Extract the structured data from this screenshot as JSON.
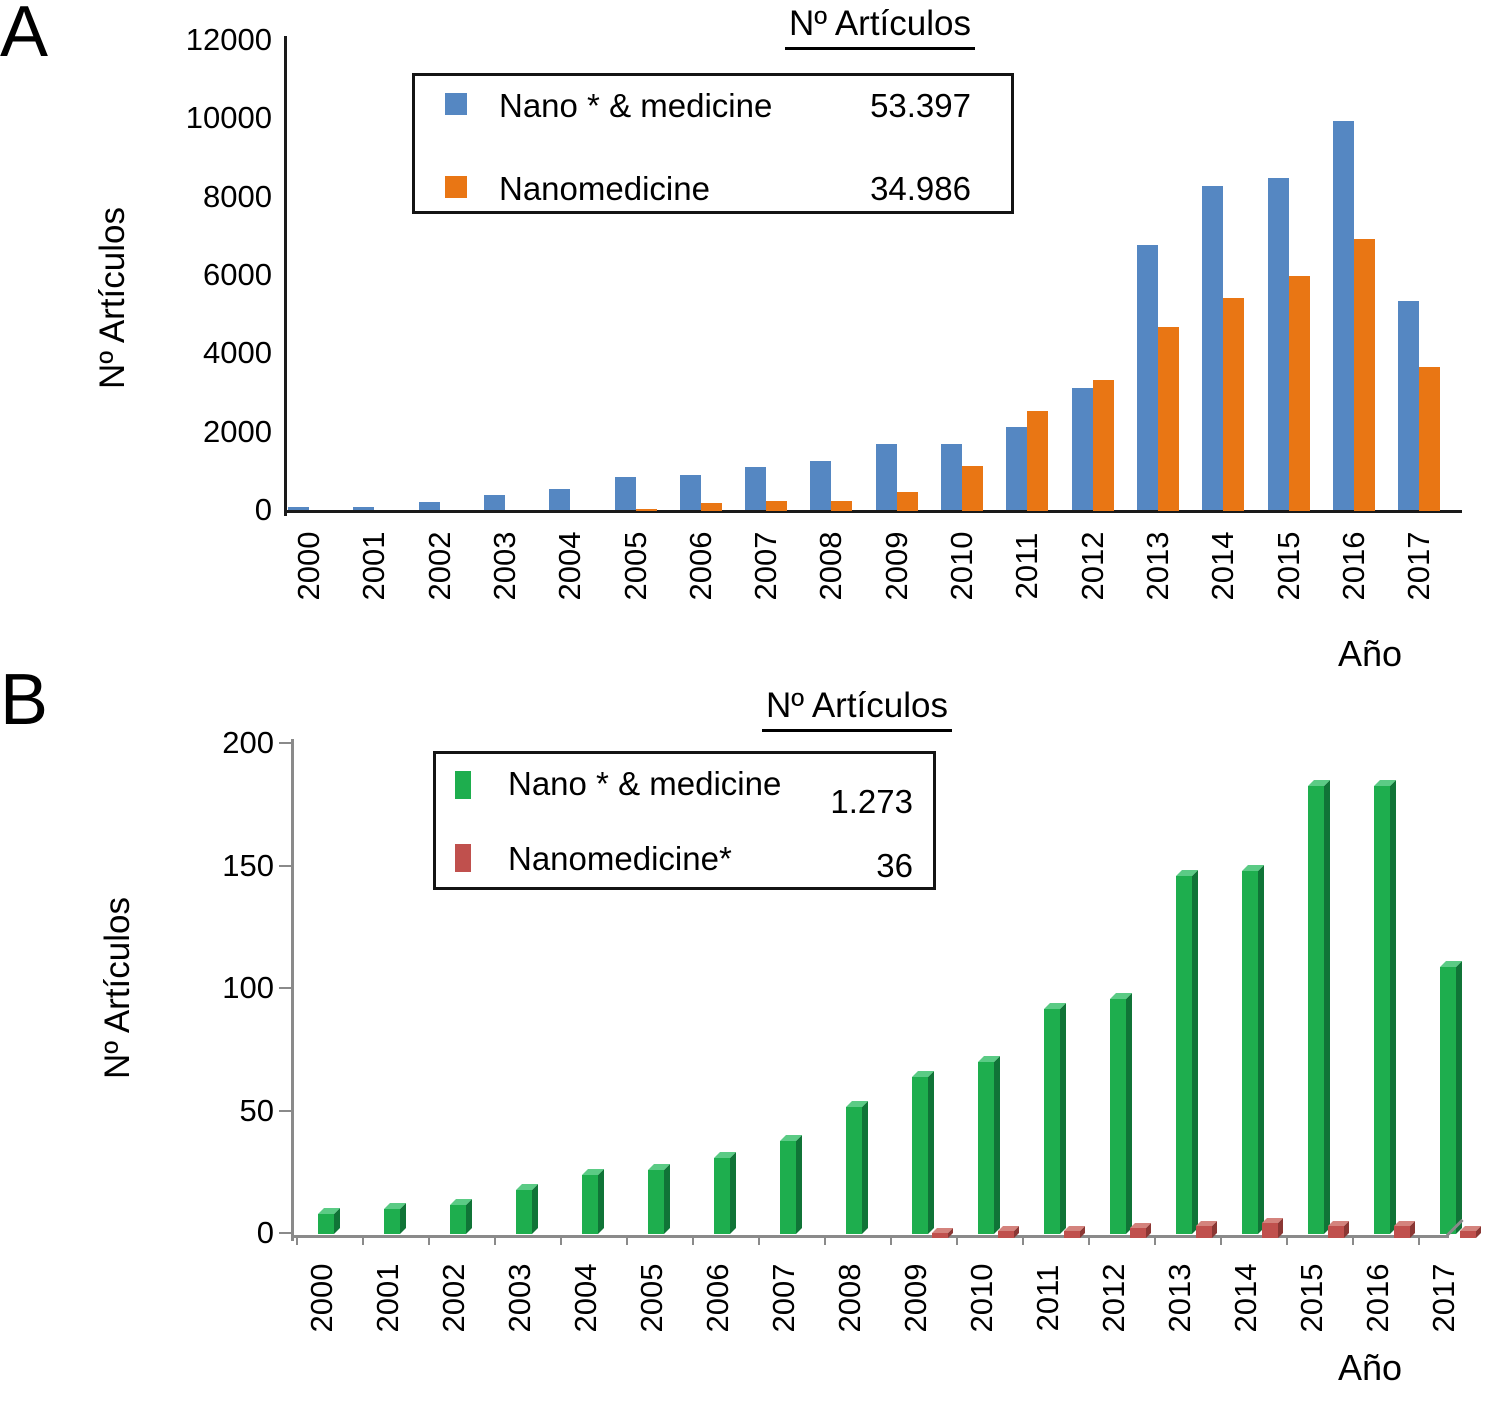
{
  "figure": {
    "background": "#ffffff"
  },
  "chart_data": [
    {
      "type": "bar",
      "panel_label": "A",
      "title": "Nº Artículos",
      "ylabel": "Nº Artículos",
      "xlabel": "Año",
      "ylim": [
        0,
        12000
      ],
      "yticks": [
        0,
        2000,
        4000,
        6000,
        8000,
        10000,
        12000
      ],
      "grid": false,
      "legend_position": "top-inside",
      "axis_color": "#1a1a1a",
      "categories": [
        "2000",
        "2001",
        "2002",
        "2003",
        "2004",
        "2005",
        "2006",
        "2007",
        "2008",
        "2009",
        "2010",
        "2011",
        "2012",
        "2013",
        "2014",
        "2015",
        "2016",
        "2017"
      ],
      "series": [
        {
          "name": "Nano * & medicine",
          "total": "53.397",
          "color": "#5587C2",
          "values": [
            100,
            110,
            230,
            420,
            570,
            860,
            920,
            1120,
            1280,
            1700,
            1700,
            2150,
            3150,
            6800,
            8300,
            8500,
            9950,
            5350
          ]
        },
        {
          "name": "Nanomedicine",
          "total": "34.986",
          "color": "#E97614",
          "values": [
            0,
            0,
            0,
            0,
            0,
            50,
            200,
            250,
            260,
            480,
            1150,
            2550,
            3350,
            4700,
            5450,
            6000,
            6950,
            3680
          ]
        }
      ]
    },
    {
      "type": "bar",
      "style_3d": true,
      "panel_label": "B",
      "title": "Nº Artículos",
      "ylabel": "Nº Artículos",
      "xlabel": "Año",
      "ylim": [
        0,
        200
      ],
      "yticks": [
        0,
        50,
        100,
        150,
        200
      ],
      "grid": false,
      "legend_position": "top-inside",
      "axis_color": "#8a8a8a",
      "categories": [
        "2000",
        "2001",
        "2002",
        "2003",
        "2004",
        "2005",
        "2006",
        "2007",
        "2008",
        "2009",
        "2010",
        "2011",
        "2012",
        "2013",
        "2014",
        "2015",
        "2016",
        "2017"
      ],
      "series": [
        {
          "name": "Nano * & medicine",
          "total": "1.273",
          "color": "#1EAE4E",
          "color_side": "#107437",
          "color_top": "#5BCB85",
          "values": [
            8,
            10,
            12,
            18,
            24,
            26,
            31,
            38,
            52,
            64,
            70,
            92,
            96,
            146,
            148,
            183,
            183,
            109
          ]
        },
        {
          "name": "Nanomedicine*",
          "total": "36",
          "color": "#C0504D",
          "color_side": "#8B3734",
          "color_top": "#D4837D",
          "values": [
            0,
            0,
            0,
            0,
            0,
            0,
            0,
            0,
            0,
            2,
            3,
            3,
            4,
            5,
            6,
            5,
            5,
            3
          ]
        }
      ]
    }
  ]
}
